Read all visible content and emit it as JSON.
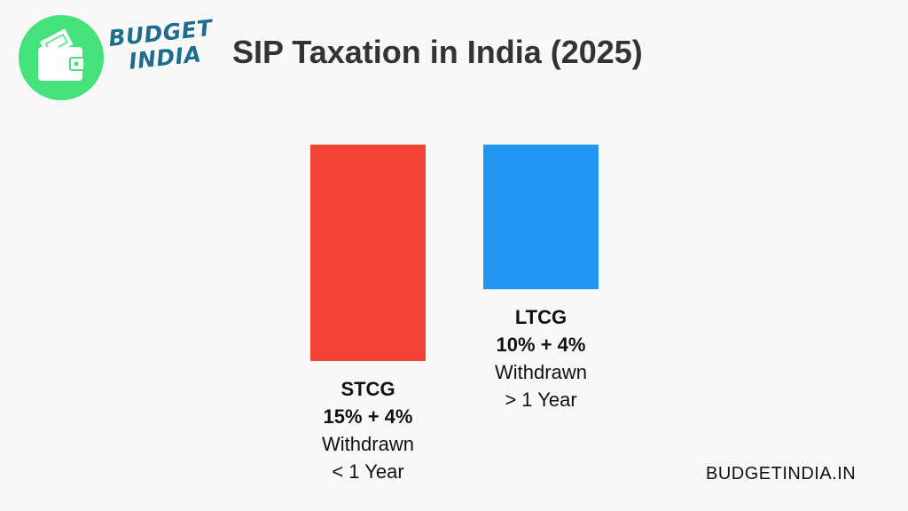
{
  "header": {
    "logo_line1": "BUDGET",
    "logo_line2": "INDIA",
    "title": "SIP Taxation in India (2025)"
  },
  "colors": {
    "stcg": "#f44336",
    "ltcg": "#2196f3",
    "logo_circle": "#44e27a",
    "logo_text": "#1e6d8c"
  },
  "icons": [
    "wallet-icon"
  ],
  "chart_data": {
    "type": "bar",
    "title": "SIP Taxation in India (2025)",
    "xlabel": "",
    "ylabel": "",
    "categories": [
      "STCG",
      "LTCG"
    ],
    "values": [
      15,
      10
    ],
    "ylim": [
      0,
      15
    ],
    "grid": false,
    "bars": [
      {
        "name": "STCG",
        "rate_label": "15% + 4%",
        "line3": "Withdrawn",
        "line4": "< 1 Year"
      },
      {
        "name": "LTCG",
        "rate_label": "10% + 4%",
        "line3": "Withdrawn",
        "line4": "> 1 Year"
      }
    ]
  },
  "footer": {
    "site": "BUDGETINDIA.IN"
  }
}
